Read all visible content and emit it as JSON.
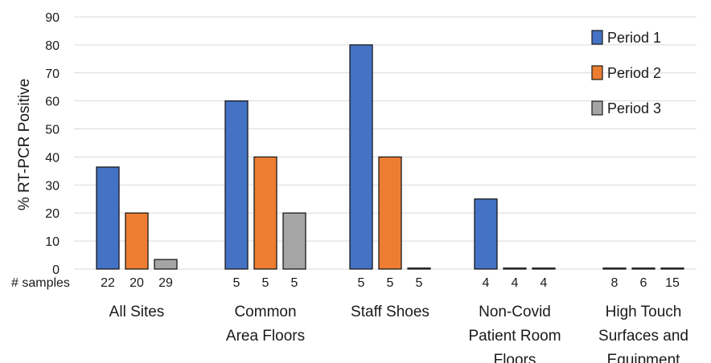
{
  "chart_data": {
    "type": "bar",
    "ylabel": "% RT-PCR Positive",
    "ylim": [
      0,
      90
    ],
    "yticks": [
      0,
      10,
      20,
      30,
      40,
      50,
      60,
      70,
      80,
      90
    ],
    "grid": true,
    "legend_position": "top-right",
    "samples_label": "# samples",
    "categories": [
      [
        "All Sites"
      ],
      [
        "Common",
        "Area Floors"
      ],
      [
        "Staff Shoes"
      ],
      [
        "Non-Covid",
        "Patient Room",
        "Floors"
      ],
      [
        "High Touch",
        "Surfaces and",
        "Equipment"
      ]
    ],
    "samples": [
      [
        "22",
        "20",
        "29"
      ],
      [
        "5",
        "5",
        "5"
      ],
      [
        "5",
        "5",
        "5"
      ],
      [
        "4",
        "4",
        "4"
      ],
      [
        "8",
        "6",
        "15"
      ]
    ],
    "series": [
      {
        "name": "Period 1",
        "color": "#4472c4",
        "values": [
          36.4,
          60,
          80,
          25,
          0
        ]
      },
      {
        "name": "Period 2",
        "color": "#ed7d31",
        "values": [
          20,
          40,
          40,
          0,
          0
        ]
      },
      {
        "name": "Period 3",
        "color": "#a5a5a5",
        "values": [
          3.4,
          20,
          0,
          0,
          0
        ]
      }
    ]
  }
}
